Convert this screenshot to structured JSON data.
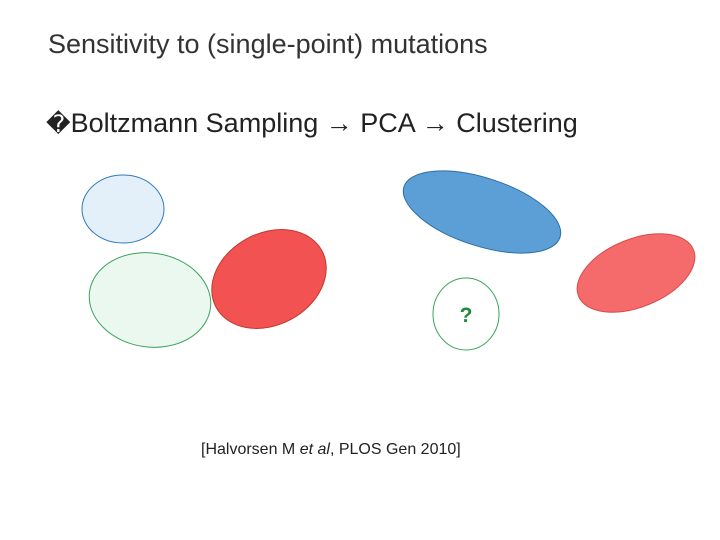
{
  "slide": {
    "title": "Sensitivity to (single-point) mutations",
    "bullet_symbol": "�",
    "bullet_text": "Boltzmann Sampling → PCA → Clustering"
  },
  "diagram": {
    "question_mark": "?",
    "clusters": [
      {
        "name": "pale-blue-cluster",
        "fill": "#e4f0f9",
        "stroke": "#2e7bbf"
      },
      {
        "name": "pale-green-cluster",
        "fill": "#eaf8ef",
        "stroke": "#3aa35a"
      },
      {
        "name": "red-cluster",
        "fill": "#f25252",
        "stroke": "#c0392b"
      },
      {
        "name": "blue-cluster",
        "fill": "#5b9fd6",
        "stroke": "#2a6ea6"
      },
      {
        "name": "light-red-cluster",
        "fill": "#f56b6b",
        "stroke": "#d94a4a"
      },
      {
        "name": "unknown-cluster",
        "fill": "#ffffff",
        "stroke": "#3aa35a"
      }
    ],
    "question_color": "#1f8a3a"
  },
  "citation": {
    "prefix": "[Halvorsen M ",
    "italic": "et al",
    "suffix": ", PLOS Gen 2010]"
  }
}
